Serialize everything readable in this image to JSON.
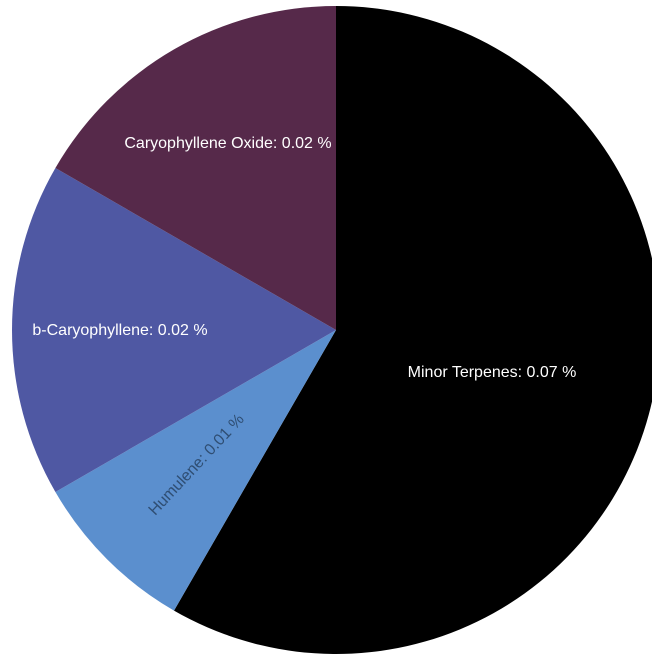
{
  "chart_data": {
    "type": "pie",
    "title": "",
    "unit": "%",
    "slices": [
      {
        "name": "Minor Terpenes",
        "value": 0.07,
        "label": "Minor Terpenes: 0.07 %",
        "color": "#000000",
        "label_color": "#ffffff"
      },
      {
        "name": "Humulene",
        "value": 0.01,
        "label": "Humulene: 0.01 %",
        "color": "#5b8fce",
        "label_color": "#2f4e73"
      },
      {
        "name": "b-Caryophyllene",
        "value": 0.02,
        "label": "b-Caryophyllene: 0.02 %",
        "color": "#4f58a3",
        "label_color": "#ffffff"
      },
      {
        "name": "Caryophyllene Oxide",
        "value": 0.02,
        "label": "Caryophyllene Oxide: 0.02 %",
        "color": "#56294a",
        "label_color": "#ffffff"
      }
    ],
    "start": "top",
    "direction": "clockwise",
    "legend": "none"
  }
}
